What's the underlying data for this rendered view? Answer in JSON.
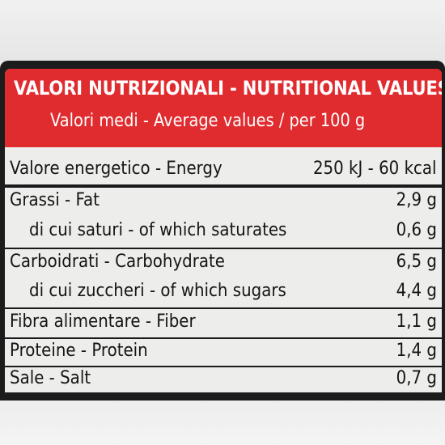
{
  "header": {
    "title": "VALORI NUTRIZIONALI - NUTRITIONAL VALUES",
    "subtitle": "Valori medi - Average values / per 100 g"
  },
  "energy": {
    "label": "Valore energetico - Energy",
    "value": "250 kJ - 60 kcal"
  },
  "fat": {
    "label": "Grassi - Fat",
    "value": "2,9 g"
  },
  "saturates": {
    "label": "di cui saturi - of which saturates",
    "value": "0,6 g"
  },
  "carbohydrate": {
    "label": "Carboidrati - Carbohydrate",
    "value": "6,5 g"
  },
  "sugars": {
    "label": "di cui zuccheri - of which sugars",
    "value": "4,4 g"
  },
  "fiber": {
    "label": "Fibra alimentare - Fiber",
    "value": "1,1 g"
  },
  "protein": {
    "label": "Proteine - Protein",
    "value": "1,4 g"
  },
  "salt": {
    "label": "Sale - Salt",
    "value": "0,7 g"
  },
  "colors": {
    "header_red": "#e02b2f",
    "label_background": "#ededec",
    "text": "#151515"
  }
}
